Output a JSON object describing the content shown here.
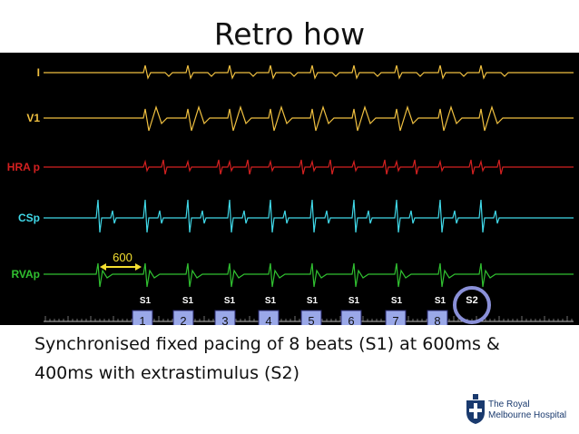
{
  "slide": {
    "title": "Retro how",
    "caption_line1": "Synchronised fixed pacing of 8 beats (S1) at 600ms &",
    "caption_line2": "400ms with extrastimulus (S2)"
  },
  "tracing": {
    "leads": [
      {
        "label": "I",
        "color": "#f0c040"
      },
      {
        "label": "V1",
        "color": "#f0c040"
      },
      {
        "label": "HRA p",
        "color": "#d42020"
      },
      {
        "label": "CSp",
        "color": "#40d8e8"
      },
      {
        "label": "RVAp",
        "color": "#30c030"
      }
    ],
    "interval_label": "600",
    "interval_color": "#f5e030",
    "stimulus_labels": [
      "S1",
      "S1",
      "S1",
      "S1",
      "S1",
      "S1",
      "S1",
      "S1",
      "S2"
    ],
    "beat_numbers": [
      "1",
      "2",
      "3",
      "4",
      "5",
      "6",
      "7",
      "8"
    ],
    "beat_box_color": "#9aa8e8",
    "highlight_ring_color": "#8a90d8"
  },
  "logo": {
    "line1": "The Royal",
    "line2": "Melbourne Hospital",
    "icon": "rmh-crest-icon"
  }
}
